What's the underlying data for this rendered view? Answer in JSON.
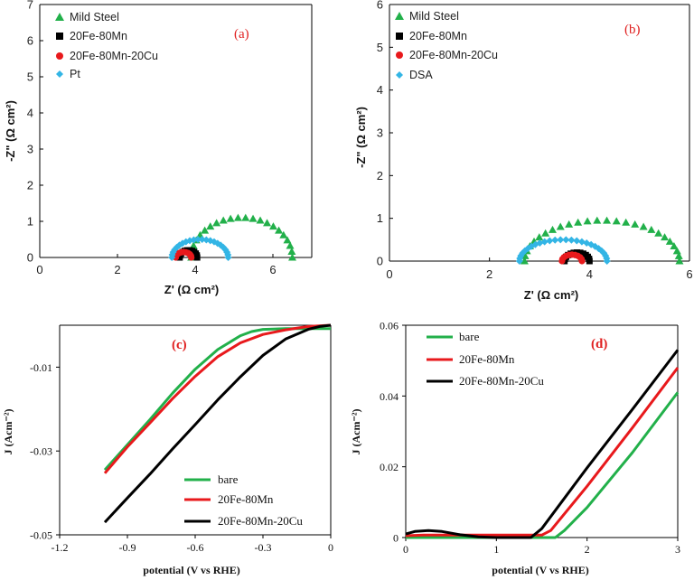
{
  "colors": {
    "green": "#22b04a",
    "black": "#000000",
    "red": "#e8191c",
    "blue": "#33b5e5",
    "panel_label": "#e02020"
  },
  "chart_data": [
    {
      "id": "a",
      "type": "scatter",
      "panel_label": "(a)",
      "xlabel": "Z' (Ω cm²)",
      "ylabel": "-Z\" (Ω cm²)",
      "xlim": [
        0,
        7
      ],
      "ylim": [
        0,
        7
      ],
      "xticks": [
        0,
        2,
        4,
        6
      ],
      "yticks": [
        0,
        1,
        2,
        3,
        4,
        5,
        6,
        7
      ],
      "legend_position": "top-left",
      "series": [
        {
          "name": "Mild Steel",
          "color": "#22b04a",
          "marker": "triangle",
          "shape": "arc",
          "x_start": 3.9,
          "x_end": 6.5,
          "peak": 1.1,
          "points": 22
        },
        {
          "name": "20Fe-80Mn",
          "color": "#000000",
          "marker": "square",
          "shape": "arc",
          "x_start": 3.6,
          "x_end": 4.05,
          "peak": 0.2,
          "points": 12
        },
        {
          "name": "20Fe-80Mn-20Cu",
          "color": "#e8191c",
          "marker": "circle",
          "shape": "arc",
          "x_start": 3.5,
          "x_end": 3.9,
          "peak": 0.15,
          "points": 11
        },
        {
          "name": "Pt",
          "color": "#33b5e5",
          "marker": "diamond",
          "shape": "arc",
          "x_start": 3.4,
          "x_end": 4.85,
          "peak": 0.5,
          "points": 22
        }
      ]
    },
    {
      "id": "b",
      "type": "scatter",
      "panel_label": "(b)",
      "xlabel": "Z' (Ω cm²)",
      "ylabel": "-Z\" (Ω cm²)",
      "xlim": [
        0,
        6
      ],
      "ylim": [
        0,
        6
      ],
      "xticks": [
        0,
        2,
        4,
        6
      ],
      "yticks": [
        0,
        1,
        2,
        3,
        4,
        5,
        6
      ],
      "legend_position": "top-left",
      "series": [
        {
          "name": "Mild Steel",
          "color": "#22b04a",
          "marker": "triangle",
          "shape": "arc",
          "x_start": 2.7,
          "x_end": 5.8,
          "peak": 0.95,
          "points": 26
        },
        {
          "name": "20Fe-80Mn",
          "color": "#000000",
          "marker": "square",
          "shape": "arc",
          "x_start": 3.5,
          "x_end": 4.0,
          "peak": 0.2,
          "points": 13
        },
        {
          "name": "20Fe-80Mn-20Cu",
          "color": "#e8191c",
          "marker": "circle",
          "shape": "arc",
          "x_start": 3.45,
          "x_end": 3.85,
          "peak": 0.15,
          "points": 11
        },
        {
          "name": "DSA",
          "color": "#33b5e5",
          "marker": "diamond",
          "shape": "arc",
          "x_start": 2.6,
          "x_end": 4.35,
          "peak": 0.5,
          "points": 26
        }
      ]
    },
    {
      "id": "c",
      "type": "line",
      "panel_label": "(c)",
      "xlabel": "potential (V vs RHE)",
      "ylabel": "J (Acm⁻²)",
      "xlim": [
        -1.2,
        0
      ],
      "ylim": [
        -0.05,
        0.0
      ],
      "xticks": [
        -1.2,
        -0.9,
        -0.6,
        -0.3,
        0
      ],
      "xtick_labels": [
        "-1.2",
        "-0.9",
        "-0.6",
        "-0.3",
        "0"
      ],
      "yticks": [
        -0.05,
        -0.03,
        -0.01
      ],
      "ytick_labels": [
        "-0.05",
        "-0.03",
        "-0.01"
      ],
      "legend_position": "bottom-right",
      "series": [
        {
          "name": "bare",
          "color": "#22b04a",
          "x": [
            -1.0,
            -0.9,
            -0.8,
            -0.7,
            -0.6,
            -0.5,
            -0.4,
            -0.35,
            -0.3,
            -0.2,
            -0.1,
            0.0
          ],
          "y": [
            -0.0345,
            -0.0285,
            -0.0225,
            -0.0162,
            -0.0105,
            -0.0058,
            -0.0025,
            -0.0015,
            -0.001,
            -0.0008,
            -0.0008,
            -0.0008
          ]
        },
        {
          "name": "20Fe-80Mn",
          "color": "#e8191c",
          "x": [
            -1.0,
            -0.9,
            -0.8,
            -0.7,
            -0.6,
            -0.5,
            -0.4,
            -0.3,
            -0.2,
            -0.1,
            0.0
          ],
          "y": [
            -0.0353,
            -0.029,
            -0.0233,
            -0.0175,
            -0.0122,
            -0.0075,
            -0.0042,
            -0.0022,
            -0.0011,
            -0.0003,
            0.0
          ]
        },
        {
          "name": "20Fe-80Mn-20Cu",
          "color": "#000000",
          "x": [
            -1.0,
            -0.9,
            -0.8,
            -0.7,
            -0.6,
            -0.5,
            -0.4,
            -0.3,
            -0.2,
            -0.1,
            -0.05,
            0.0
          ],
          "y": [
            -0.047,
            -0.0412,
            -0.0355,
            -0.0295,
            -0.0237,
            -0.0178,
            -0.0123,
            -0.0072,
            -0.0033,
            -0.001,
            -0.0003,
            0.0
          ]
        }
      ]
    },
    {
      "id": "d",
      "type": "line",
      "panel_label": "(d)",
      "xlabel": "potential (V vs RHE)",
      "ylabel": "J (Acm⁻²)",
      "xlim": [
        0,
        3
      ],
      "ylim": [
        0,
        0.06
      ],
      "xticks": [
        0,
        1,
        2,
        3
      ],
      "xtick_labels": [
        "0",
        "1",
        "2",
        "3"
      ],
      "yticks": [
        0,
        0.02,
        0.04,
        0.06
      ],
      "ytick_labels": [
        "0",
        "0.02",
        "0.04",
        "0.06"
      ],
      "legend_position": "top-left",
      "series": [
        {
          "name": "bare",
          "color": "#22b04a",
          "x": [
            0.0,
            0.5,
            1.0,
            1.5,
            1.65,
            1.75,
            2.0,
            2.5,
            3.0
          ],
          "y": [
            0.0,
            0.0,
            0.0,
            0.0,
            0.0,
            0.002,
            0.0085,
            0.024,
            0.041
          ]
        },
        {
          "name": "20Fe-80Mn",
          "color": "#e8191c",
          "x": [
            0.0,
            0.2,
            0.5,
            1.0,
            1.4,
            1.5,
            1.6,
            2.0,
            2.5,
            3.0
          ],
          "y": [
            0.0005,
            0.0007,
            0.0007,
            0.0007,
            0.0007,
            0.0007,
            0.002,
            0.0145,
            0.031,
            0.048
          ]
        },
        {
          "name": "20Fe-80Mn-20Cu",
          "color": "#000000",
          "x": [
            0.0,
            0.1,
            0.25,
            0.4,
            0.6,
            0.8,
            1.0,
            1.2,
            1.38,
            1.5,
            2.0,
            2.5,
            3.0
          ],
          "y": [
            0.001,
            0.0017,
            0.002,
            0.0017,
            0.0008,
            0.0002,
            0.0,
            0.0,
            0.0,
            0.0025,
            0.0197,
            0.0362,
            0.053
          ]
        }
      ]
    }
  ]
}
